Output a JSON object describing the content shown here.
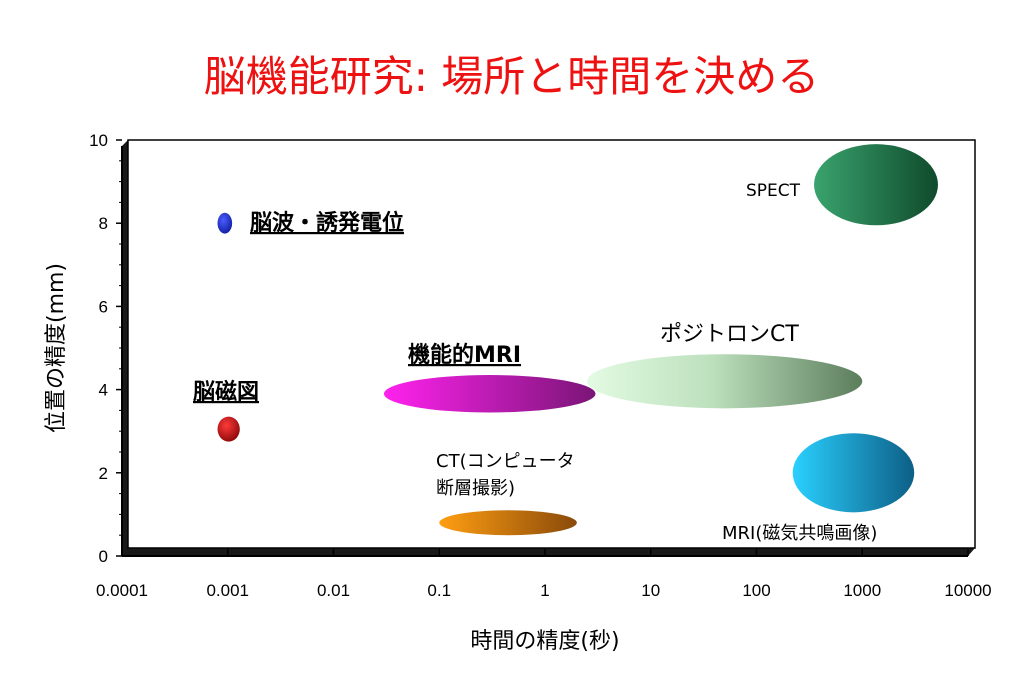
{
  "title": "脳機能研究: 場所と時間を決める",
  "colors": {
    "title": "#ee1111",
    "eeg": "#1f2fcf",
    "meg": "#cc1111",
    "fmri": "#cc22cc",
    "ct": "#dd8811",
    "pet": "#a8d8a8",
    "mri": "#22aadd",
    "spect": "#2e8b57"
  },
  "chart_data": {
    "type": "scatter",
    "title": "脳機能研究: 場所と時間を決める",
    "xlabel": "時間の精度(秒)",
    "ylabel": "位置の精度(mm)",
    "x_scale": "log",
    "xlim": [
      0.0001,
      10000
    ],
    "ylim": [
      0,
      10
    ],
    "x_ticks": [
      "0.0001",
      "0.001",
      "0.01",
      "0.1",
      "1",
      "10",
      "100",
      "1000",
      "10000"
    ],
    "y_ticks": [
      "0",
      "2",
      "4",
      "6",
      "8",
      "10"
    ],
    "grid": false,
    "items": [
      {
        "label": "脳波・誘発電位",
        "x_range": [
          0.0008,
          0.0011
        ],
        "y_range": [
          7.75,
          8.25
        ],
        "color": "eeg"
      },
      {
        "label": "脳磁図",
        "x_range": [
          0.0008,
          0.0013
        ],
        "y_range": [
          2.75,
          3.35
        ],
        "color": "meg"
      },
      {
        "label": "機能的MRI",
        "x_range": [
          0.03,
          3
        ],
        "y_range": [
          3.45,
          4.35
        ],
        "color": "fmri"
      },
      {
        "label": "CT(コンピュータ断層撮影)",
        "x_range": [
          0.1,
          2
        ],
        "y_range": [
          0.5,
          1.1
        ],
        "color": "ct"
      },
      {
        "label": "ポジトロンCT",
        "x_range": [
          2.5,
          1000
        ],
        "y_range": [
          3.55,
          4.85
        ],
        "color": "pet"
      },
      {
        "label": "MRI(磁気共鳴画像)",
        "x_range": [
          220,
          3100
        ],
        "y_range": [
          1.05,
          2.95
        ],
        "color": "mri"
      },
      {
        "label": "SPECT",
        "x_range": [
          350,
          5200
        ],
        "y_range": [
          7.95,
          9.9
        ],
        "color": "spect"
      }
    ]
  },
  "labels": {
    "eeg": "脳波・誘発電位",
    "meg": "脳磁図",
    "fmri": "機能的MRI",
    "ct_line1": "CT(コンピュータ",
    "ct_line2": "断層撮影)",
    "pet": "ポジトロンCT",
    "mri": "MRI(磁気共鳴画像)",
    "spect": "SPECT"
  }
}
